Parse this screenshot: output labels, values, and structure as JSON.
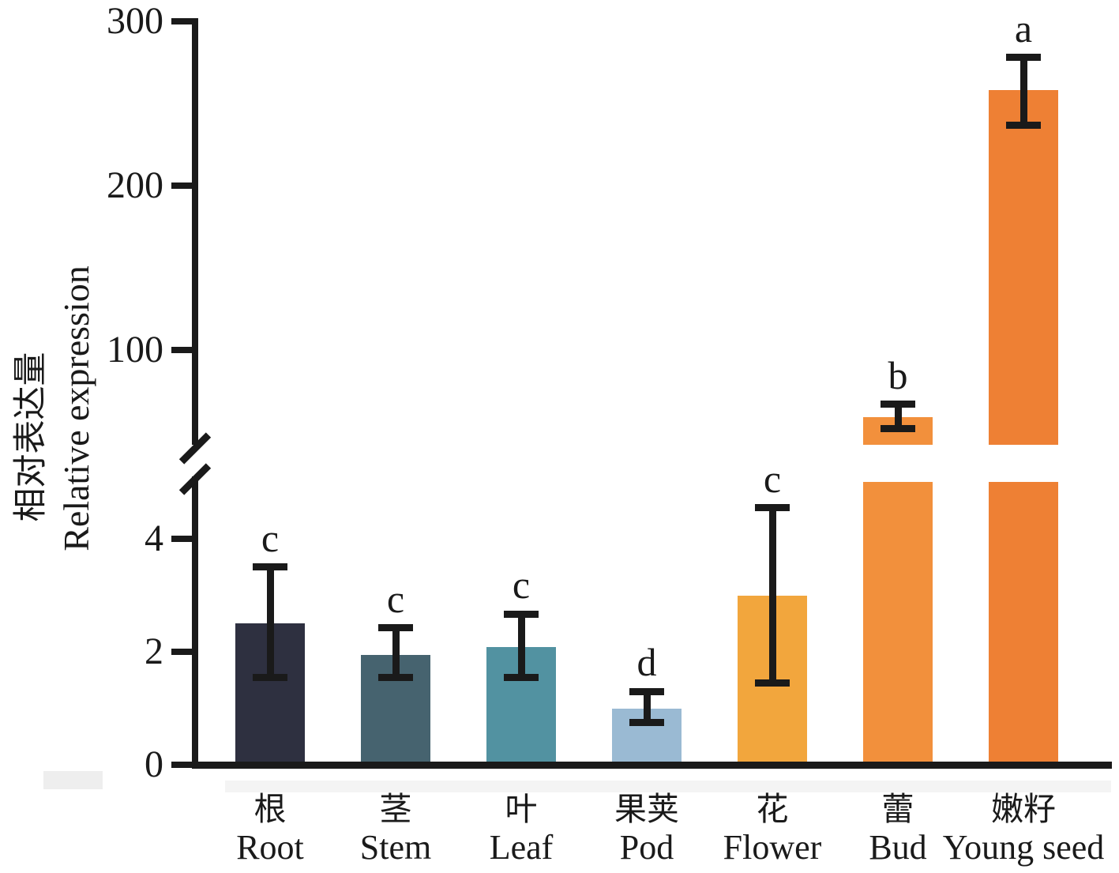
{
  "chart_data": {
    "type": "bar",
    "title": "",
    "ylabel_zh": "相对表达量",
    "ylabel_en": "Relative expression",
    "xlabel": "",
    "legend": "none",
    "grid": false,
    "y_axis": {
      "broken": true,
      "lower_segment_ticks": [
        0,
        2,
        4
      ],
      "lower_segment_range": [
        0,
        5
      ],
      "upper_segment_ticks": [
        100,
        200,
        300
      ],
      "upper_segment_range": [
        50,
        300
      ]
    },
    "axis_color": "#1a1a1a",
    "bars": [
      {
        "category_zh": "根",
        "category_en": "Root",
        "value": 2.5,
        "err_low": 1.55,
        "err_high": 3.5,
        "sig_letter": "c",
        "color": "#2e3040"
      },
      {
        "category_zh": "茎",
        "category_en": "Stem",
        "value": 1.95,
        "err_low": 1.55,
        "err_high": 2.42,
        "sig_letter": "c",
        "color": "#46636f"
      },
      {
        "category_zh": "叶",
        "category_en": "Leaf",
        "value": 2.08,
        "err_low": 1.55,
        "err_high": 2.67,
        "sig_letter": "c",
        "color": "#5292a1"
      },
      {
        "category_zh": "果荚",
        "category_en": "Pod",
        "value": 1.0,
        "err_low": 0.75,
        "err_high": 1.3,
        "sig_letter": "d",
        "color": "#9abad3"
      },
      {
        "category_zh": "花",
        "category_en": "Flower",
        "value": 3.0,
        "err_low": 1.45,
        "err_high": 4.55,
        "sig_letter": "c",
        "color": "#f2a63d"
      },
      {
        "category_zh": "蕾",
        "category_en": "Bud",
        "value": 59,
        "err_low": 52,
        "err_high": 67,
        "sig_letter": "b",
        "color": "#f2903c"
      },
      {
        "category_zh": "嫩籽",
        "category_en": "Young seed",
        "value": 258,
        "err_low": 237,
        "err_high": 278,
        "sig_letter": "a",
        "color": "#ee8034"
      }
    ]
  }
}
